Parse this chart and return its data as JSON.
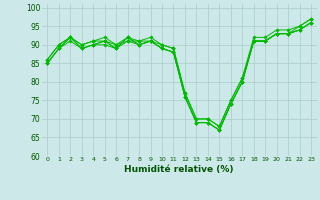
{
  "xlabel": "Humidité relative (%)",
  "bg_color": "#cce8e8",
  "grid_color": "#aacccc",
  "line_color": "#00bb00",
  "marker_color": "#00bb00",
  "xlim": [
    -0.5,
    23.5
  ],
  "ylim": [
    60,
    101
  ],
  "yticks": [
    60,
    65,
    70,
    75,
    80,
    85,
    90,
    95,
    100
  ],
  "xticks": [
    0,
    1,
    2,
    3,
    4,
    5,
    6,
    7,
    8,
    9,
    10,
    11,
    12,
    13,
    14,
    15,
    16,
    17,
    18,
    19,
    20,
    21,
    22,
    23
  ],
  "series": [
    [
      85,
      89,
      92,
      89,
      90,
      91,
      89,
      92,
      90,
      91,
      89,
      88,
      76,
      69,
      69,
      67,
      74,
      80,
      91,
      91,
      93,
      93,
      94,
      96
    ],
    [
      86,
      90,
      92,
      90,
      91,
      91,
      90,
      91,
      91,
      91,
      90,
      89,
      77,
      70,
      70,
      68,
      75,
      81,
      91,
      91,
      93,
      93,
      95,
      97
    ],
    [
      85,
      89,
      91,
      89,
      90,
      90,
      89,
      91,
      90,
      91,
      89,
      88,
      76,
      69,
      69,
      67,
      74,
      80,
      91,
      91,
      93,
      93,
      94,
      96
    ],
    [
      86,
      90,
      92,
      90,
      91,
      92,
      90,
      92,
      91,
      92,
      90,
      89,
      77,
      70,
      70,
      68,
      75,
      81,
      92,
      92,
      94,
      94,
      95,
      97
    ],
    [
      85,
      89,
      92,
      89,
      90,
      91,
      89,
      92,
      90,
      91,
      89,
      88,
      76,
      69,
      69,
      67,
      74,
      80,
      91,
      91,
      93,
      93,
      94,
      96
    ]
  ]
}
